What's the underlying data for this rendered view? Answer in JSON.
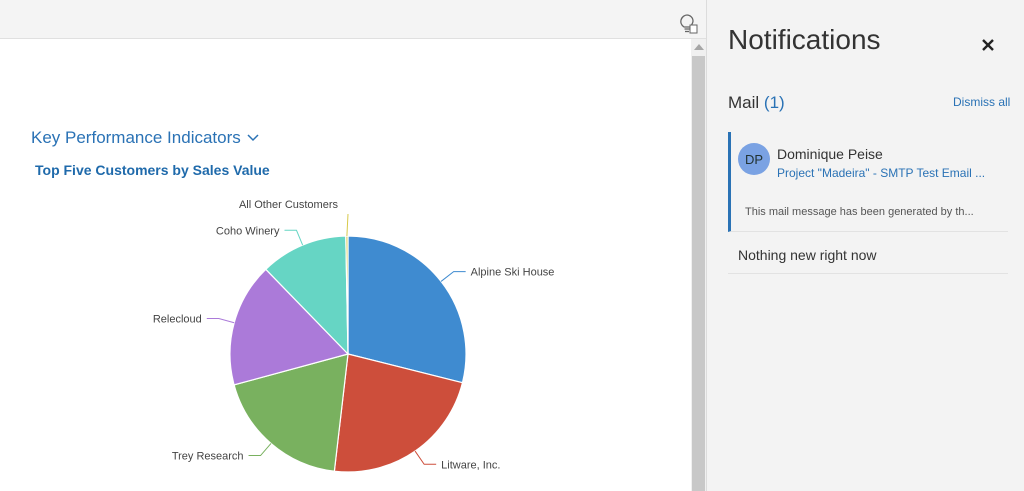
{
  "main": {
    "section_title": "Key Performance Indicators",
    "chart_title": "Top Five Customers by Sales Value"
  },
  "chart_data": {
    "type": "pie",
    "title": "Top Five Customers by Sales Value",
    "slices": [
      {
        "label": "Alpine Ski House",
        "value": 29,
        "color": "#3f8bd0"
      },
      {
        "label": "Litware, Inc.",
        "value": 23,
        "color": "#cd4e3b"
      },
      {
        "label": "Trey Research",
        "value": 19,
        "color": "#79b15f"
      },
      {
        "label": "Relecloud",
        "value": 17,
        "color": "#ab7ad9"
      },
      {
        "label": "Coho Winery",
        "value": 12,
        "color": "#66d5c4"
      },
      {
        "label": "All Other Customers",
        "value": 0.3,
        "color": "#d7c94a"
      }
    ]
  },
  "notifications": {
    "title": "Notifications",
    "mail_label": "Mail",
    "mail_count": "(1)",
    "dismiss_all": "Dismiss all",
    "items": [
      {
        "initials": "DP",
        "sender": "Dominique Peise",
        "subject": "Project \"Madeira\" - SMTP Test Email ...",
        "preview": "This mail message has been generated by th..."
      }
    ],
    "empty_message": "Nothing new right now"
  },
  "icons": [
    "lightbulb-icon",
    "close-icon",
    "chevron-down-icon"
  ]
}
